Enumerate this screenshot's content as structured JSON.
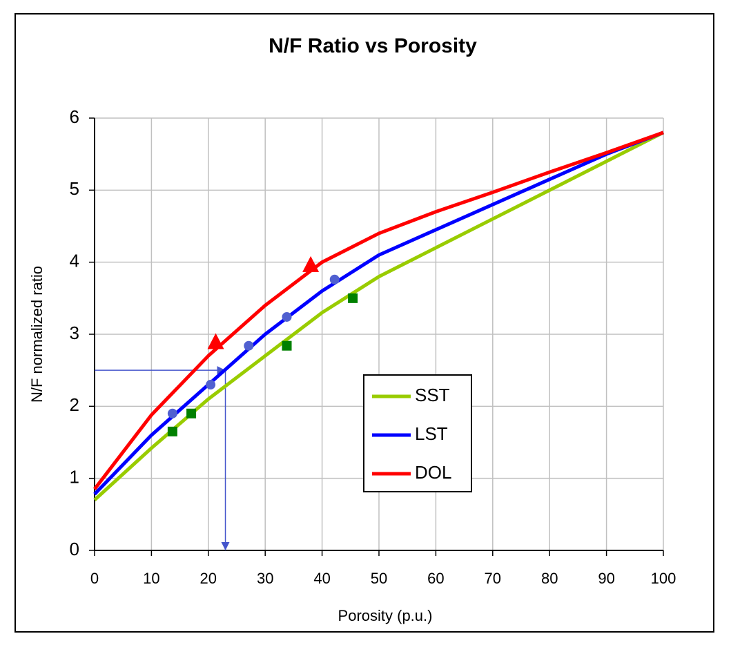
{
  "chart_data": {
    "type": "line",
    "title": "N/F Ratio vs Porosity",
    "x_label": "Porosity (p.u.)",
    "y_label": "N/F normalized ratio",
    "x": [
      0,
      10,
      20,
      30,
      40,
      50,
      60,
      70,
      80,
      90,
      100
    ],
    "series": [
      {
        "name": "SST",
        "color": "#99cc00",
        "values": [
          0.7,
          1.42,
          2.1,
          2.7,
          3.3,
          3.8,
          4.2,
          4.6,
          5.0,
          5.4,
          5.8
        ]
      },
      {
        "name": "LST",
        "color": "#0000ff",
        "values": [
          0.78,
          1.6,
          2.3,
          3.0,
          3.6,
          4.1,
          4.45,
          4.8,
          5.15,
          5.5,
          5.8
        ]
      },
      {
        "name": "DOL",
        "color": "#ff0000",
        "values": [
          0.85,
          1.88,
          2.7,
          3.4,
          4.0,
          4.4,
          4.7,
          4.97,
          5.25,
          5.52,
          5.8
        ]
      }
    ],
    "markers": [
      {
        "color": "#008000",
        "shape": "square",
        "x": [
          13.7,
          17,
          33.8,
          45.4
        ],
        "y": [
          1.65,
          1.9,
          2.84,
          3.5
        ]
      },
      {
        "color": "#5060d0",
        "shape": "circle",
        "x": [
          13.7,
          20.4,
          27.1,
          33.8,
          42.2
        ],
        "y": [
          1.9,
          2.3,
          2.84,
          3.24,
          3.76
        ]
      },
      {
        "color": "#ff0000",
        "shape": "triangle",
        "x": [
          21.3,
          38
        ],
        "y": [
          2.88,
          3.95
        ]
      }
    ],
    "arrow": {
      "x": 23,
      "y": 2.5,
      "color": "#4455cc"
    },
    "xlim": [
      0,
      100
    ],
    "xticks": [
      0,
      10,
      20,
      30,
      40,
      50,
      60,
      70,
      80,
      90,
      100
    ],
    "ylim": [
      0,
      6
    ],
    "yticks": [
      0,
      1,
      2,
      3,
      4,
      5,
      6
    ],
    "grid": true
  }
}
